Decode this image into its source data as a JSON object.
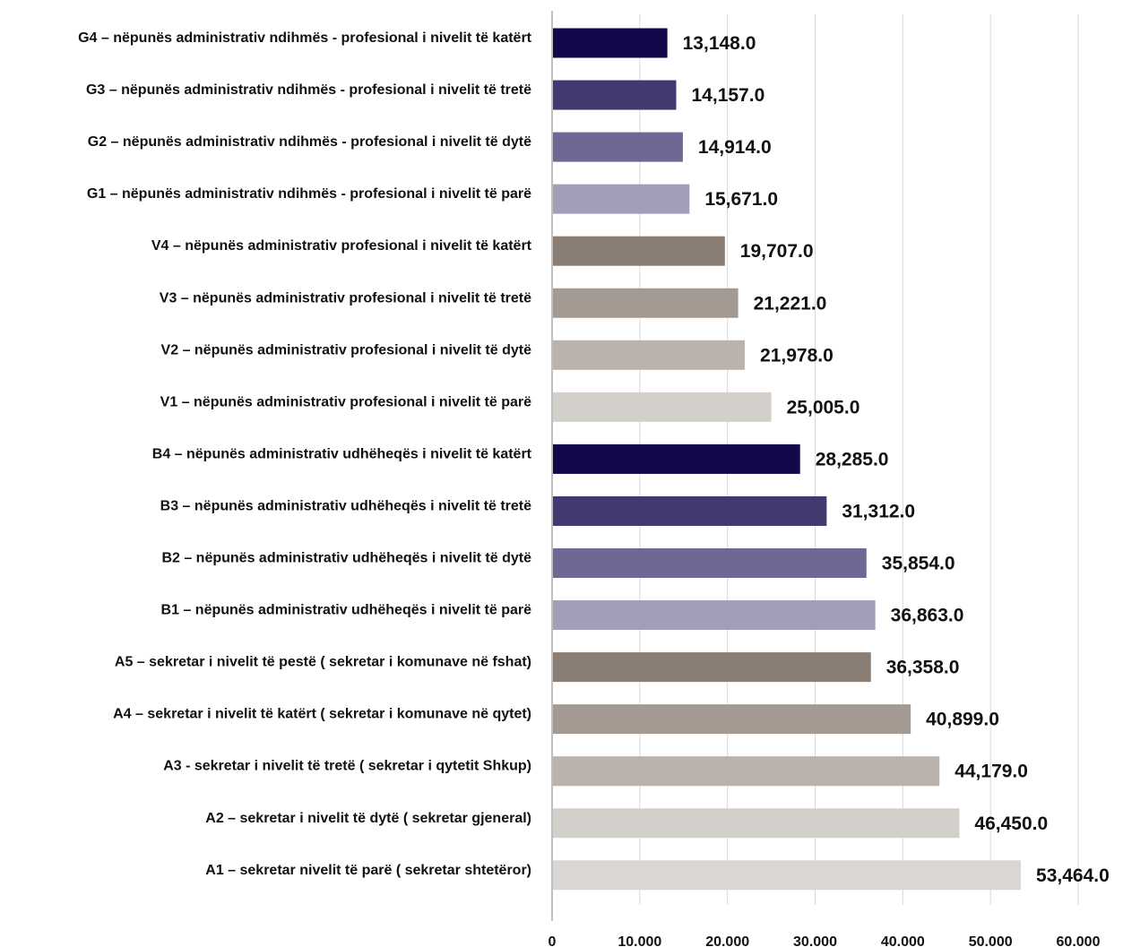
{
  "chart_data": {
    "type": "bar",
    "orientation": "horizontal",
    "title": "",
    "xlabel": "",
    "ylabel": "",
    "xlim": [
      0,
      60000
    ],
    "x_ticks": [
      0,
      10000,
      20000,
      30000,
      40000,
      50000,
      60000
    ],
    "x_tick_labels": [
      "0",
      "10.000",
      "20.000",
      "30.000",
      "40.000",
      "50.000",
      "60.000"
    ],
    "grid": "vertical",
    "legend": "none",
    "categories": [
      "G4 – nëpunës administrativ ndihmës - profesional i nivelit të katërt",
      "G3 – nëpunës administrativ ndihmës - profesional i nivelit të tretë",
      "G2 – nëpunës administrativ ndihmës - profesional i nivelit të dytë",
      "G1 – nëpunës administrativ ndihmës - profesional i nivelit të parë",
      "V4 – nëpunës administrativ profesional i nivelit të katërt",
      "V3 – nëpunës administrativ profesional i nivelit të tretë",
      "V2 – nëpunës administrativ profesional i nivelit të dytë",
      "V1 – nëpunës administrativ profesional i nivelit të parë",
      "B4 – nëpunës administrativ udhëheqës i nivelit të katërt",
      "B3 – nëpunës administrativ udhëheqës i nivelit të tretë",
      "B2 – nëpunës administrativ udhëheqës i nivelit të dytë",
      "B1 – nëpunës administrativ udhëheqës i nivelit të parë",
      "A5 – sekretar i nivelit të pestë ( sekretar i komunave në fshat)",
      "A4 – sekretar i nivelit të katërt ( sekretar i komunave në qytet)",
      "A3 - sekretar i nivelit të tretë ( sekretar i qytetit Shkup)",
      "A2 – sekretar i nivelit të dytë ( sekretar gjeneral)",
      "A1 – sekretar  nivelit të parë ( sekretar shtetëror)"
    ],
    "values": [
      13148,
      14157,
      14914,
      15671,
      19707,
      21221,
      21978,
      25005,
      28285,
      31312,
      35854,
      36863,
      36358,
      40899,
      44179,
      46450,
      53464
    ],
    "value_labels": [
      "13,148.0",
      "14,157.0",
      "14,914.0",
      "15,671.0",
      "19,707.0",
      "21,221.0",
      "21,978.0",
      "25,005.0",
      "28,285.0",
      "31,312.0",
      "35,854.0",
      "36,863.0",
      "36,358.0",
      "40,899.0",
      "44,179.0",
      "46,450.0",
      "53,464.0"
    ],
    "bar_colors": [
      "#15084a",
      "#433870",
      "#6f6894",
      "#a29eba",
      "#8a7d73",
      "#a49a91",
      "#bab3ad",
      "#d3cfcb",
      "#15084a",
      "#433870",
      "#6f6894",
      "#a29eba",
      "#8a7d73",
      "#a49a91",
      "#bab3ad",
      "#d3cfcb",
      "#dad6d3"
    ]
  }
}
